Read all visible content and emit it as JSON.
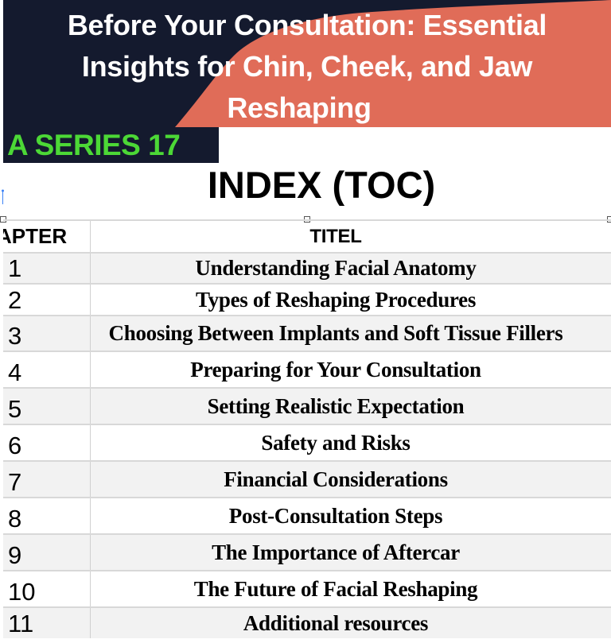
{
  "banner": {
    "title_line1": "Before Your Consultation: Essential",
    "title_line2": "Insights for Chin, Cheek, and Jaw",
    "title_line3": "Reshaping",
    "series_label": "A SERIES 17",
    "colors": {
      "navy": "#141a2e",
      "coral": "#e06c58",
      "green": "#4cd836"
    }
  },
  "heading": "INDEX (TOC)",
  "table": {
    "headers": [
      "APTER",
      "TITEL"
    ],
    "rows": [
      {
        "num": "1",
        "title": "Understanding Facial Anatomy"
      },
      {
        "num": "2",
        "title": "Types of Reshaping Procedures"
      },
      {
        "num": "3",
        "title": "Choosing Between Implants and Soft Tissue Fillers"
      },
      {
        "num": "4",
        "title": "Preparing for Your Consultation"
      },
      {
        "num": "5",
        "title": "Setting Realistic Expectation"
      },
      {
        "num": "6",
        "title": "Safety and Risks"
      },
      {
        "num": "7",
        "title": "Financial Considerations"
      },
      {
        "num": "8",
        "title": "Post-Consultation Steps"
      },
      {
        "num": "9",
        "title": "The Importance of Aftercar"
      },
      {
        "num": "10",
        "title": "The Future of Facial Reshaping"
      },
      {
        "num": "11",
        "title": "Additional resources"
      }
    ]
  }
}
